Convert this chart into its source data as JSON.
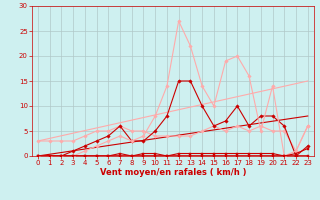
{
  "background_color": "#cef0f0",
  "grid_color": "#b0c8c8",
  "xlabel": "Vent moyen/en rafales ( km/h )",
  "xlabel_color": "#cc0000",
  "xlabel_fontsize": 6,
  "tick_color": "#cc0000",
  "tick_fontsize": 5,
  "xlim": [
    -0.5,
    23.5
  ],
  "ylim": [
    0,
    30
  ],
  "xticks": [
    0,
    1,
    2,
    3,
    4,
    5,
    6,
    7,
    8,
    9,
    10,
    11,
    12,
    13,
    14,
    15,
    16,
    17,
    18,
    19,
    20,
    21,
    22,
    23
  ],
  "yticks": [
    0,
    5,
    10,
    15,
    20,
    25,
    30
  ],
  "series": [
    {
      "x": [
        0,
        1,
        2,
        3,
        4,
        5,
        6,
        7,
        8,
        9,
        10,
        11,
        12,
        13,
        14,
        15,
        16,
        17,
        18,
        19,
        20,
        21,
        22,
        23
      ],
      "y": [
        0,
        0,
        0,
        0,
        0,
        0,
        0,
        0,
        0,
        0,
        0,
        0,
        0,
        0,
        0,
        0,
        0,
        0,
        0,
        0,
        0,
        0,
        0,
        0
      ],
      "color": "#cc0000",
      "linewidth": 1.2,
      "marker": "s",
      "markersize": 1.8,
      "linestyle": "-",
      "zorder": 5
    },
    {
      "x": [
        0,
        1,
        2,
        3,
        4,
        5,
        6,
        7,
        8,
        9,
        10,
        11,
        12,
        13,
        14,
        15,
        16,
        17,
        18,
        19,
        20,
        21,
        22,
        23
      ],
      "y": [
        0,
        0,
        0,
        0,
        0,
        0,
        0,
        0.5,
        0,
        0.5,
        0.5,
        0,
        0.5,
        0.5,
        0.5,
        0.5,
        0.5,
        0.5,
        0.5,
        0.5,
        0.5,
        0,
        0.5,
        1.5
      ],
      "color": "#cc0000",
      "linewidth": 0.8,
      "marker": "s",
      "markersize": 1.5,
      "linestyle": "-",
      "zorder": 4
    },
    {
      "x": [
        0,
        1,
        2,
        3,
        4,
        5,
        6,
        7,
        8,
        9,
        10,
        11,
        12,
        13,
        14,
        15,
        16,
        17,
        18,
        19,
        20,
        21,
        22,
        23
      ],
      "y": [
        3,
        3,
        3,
        3,
        4,
        5,
        5,
        6,
        5,
        5,
        4,
        4,
        4,
        4,
        5,
        6,
        5,
        6,
        5,
        6,
        5,
        5,
        1,
        6
      ],
      "color": "#ffaaaa",
      "linewidth": 0.8,
      "marker": "D",
      "markersize": 1.8,
      "linestyle": "-",
      "zorder": 3
    },
    {
      "x": [
        0,
        1,
        2,
        3,
        4,
        5,
        6,
        7,
        8,
        9,
        10,
        11,
        12,
        13,
        14,
        15,
        16,
        17,
        18,
        19,
        20,
        21,
        22,
        23
      ],
      "y": [
        0,
        0,
        0,
        1,
        2,
        3,
        4,
        6,
        3,
        3,
        5,
        8,
        15,
        15,
        10,
        6,
        7,
        10,
        6,
        8,
        8,
        6,
        0,
        2
      ],
      "color": "#cc0000",
      "linewidth": 0.8,
      "marker": "D",
      "markersize": 1.8,
      "linestyle": "-",
      "zorder": 3
    },
    {
      "x": [
        0,
        1,
        2,
        3,
        4,
        5,
        6,
        7,
        8,
        9,
        10,
        11,
        12,
        13,
        14,
        15,
        16,
        17,
        18,
        19,
        20,
        21,
        22,
        23
      ],
      "y": [
        0,
        0,
        0,
        0,
        1,
        2,
        3,
        4,
        3,
        4,
        8,
        14,
        27,
        22,
        14,
        10,
        19,
        20,
        16,
        5,
        14,
        0,
        1,
        6
      ],
      "color": "#ffaaaa",
      "linewidth": 0.8,
      "marker": "D",
      "markersize": 1.8,
      "linestyle": "-",
      "zorder": 3
    },
    {
      "x": [
        0,
        23
      ],
      "y": [
        3,
        15
      ],
      "color": "#ffaaaa",
      "linewidth": 0.8,
      "marker": null,
      "markersize": 0,
      "linestyle": "-",
      "zorder": 2
    },
    {
      "x": [
        0,
        23
      ],
      "y": [
        0,
        8
      ],
      "color": "#cc0000",
      "linewidth": 0.8,
      "marker": null,
      "markersize": 0,
      "linestyle": "-",
      "zorder": 2
    }
  ]
}
